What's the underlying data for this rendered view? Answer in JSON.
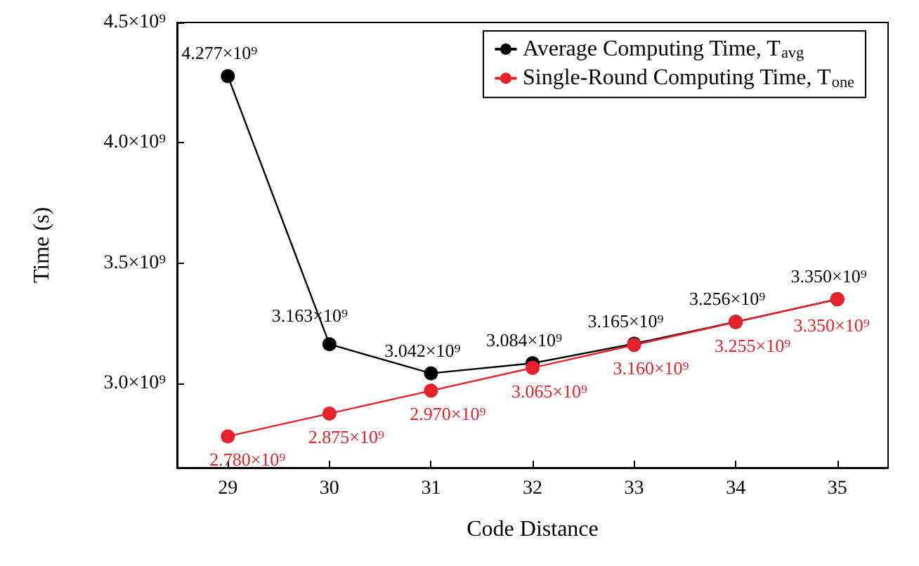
{
  "chart_data": {
    "type": "line",
    "xlabel": "Code Distance",
    "ylabel": "Time (s)",
    "x": [
      29,
      30,
      31,
      32,
      33,
      34,
      35
    ],
    "series": [
      {
        "name": "Average Computing Time, T$_{avg}$",
        "color": "#000000",
        "values": [
          4277000000.0,
          3163000000.0,
          3042000000.0,
          3084000000.0,
          3165000000.0,
          3256000000.0,
          3350000000.0
        ],
        "value_labels": [
          "4.277×10⁹",
          "3.163×10⁹",
          "3.042×10⁹",
          "3.084×10⁹",
          "3.165×10⁹",
          "3.256×10⁹",
          "3.350×10⁹"
        ]
      },
      {
        "name": "Single-Round Computing Time, T$_{one}$",
        "color": "#e8212a",
        "values": [
          2780000000.0,
          2875000000.0,
          2970000000.0,
          3065000000.0,
          3160000000.0,
          3255000000.0,
          3350000000.0
        ],
        "value_labels": [
          "2.780×10⁹",
          "2.875×10⁹",
          "2.970×10⁹",
          "3.065×10⁹",
          "3.160×10⁹",
          "3.255×10⁹",
          "3.350×10⁹"
        ]
      }
    ],
    "xlim": [
      28.5,
      35.5
    ],
    "xticks": [
      29,
      30,
      31,
      32,
      33,
      34,
      35
    ],
    "ylim": [
      2650000000.0,
      4500000000.0
    ],
    "yticks": [
      {
        "value": 3000000000.0,
        "label": "3.0×10⁹"
      },
      {
        "value": 3500000000.0,
        "label": "3.5×10⁹"
      },
      {
        "value": 4000000000.0,
        "label": "4.0×10⁹"
      },
      {
        "value": 4500000000.0,
        "label": "4.5×10⁹"
      }
    ],
    "legend": "top right",
    "marker": "circle",
    "line_style": "solid",
    "grid": false
  }
}
